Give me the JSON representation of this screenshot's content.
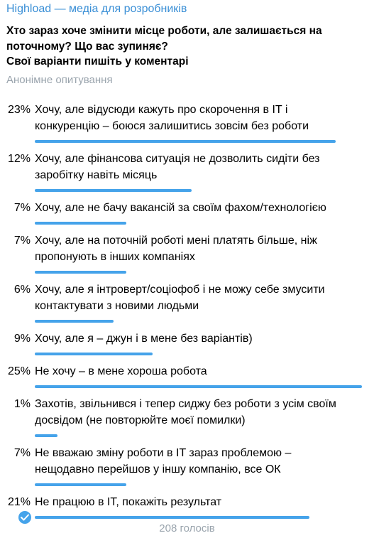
{
  "channel": {
    "name": "Highload — медіа для розробників"
  },
  "poll": {
    "question_lines": [
      "Хто зараз хоче змінити місце роботи, але залишається на",
      "поточному? Що вас зупиняє?",
      "Свої варіанти пишіть у коментарі"
    ],
    "type_label": "Анонімне опитування",
    "options": [
      {
        "percent_label": "23%",
        "percent": 23,
        "lines": [
          "Хочу, але відусюди кажуть про скорочення в IT і",
          "конкуренцію – боюся залишитись зовсім без роботи"
        ]
      },
      {
        "percent_label": "12%",
        "percent": 12,
        "lines": [
          "Хочу, але фінансова ситуація не дозволить сидіти без",
          "заробітку навіть місяць"
        ]
      },
      {
        "percent_label": "7%",
        "percent": 7,
        "lines": [
          "Хочу, але не бачу вакансій за своїм фахом/технологією"
        ]
      },
      {
        "percent_label": "7%",
        "percent": 7,
        "lines": [
          "Хочу, але на поточній роботі мені платять більше, ніж",
          "пропонують в інших компаніях"
        ]
      },
      {
        "percent_label": "6%",
        "percent": 6,
        "lines": [
          "Хочу, але я інтроверт/соціофоб і не можу себе змусити",
          "контактувати з новими людьми"
        ]
      },
      {
        "percent_label": "9%",
        "percent": 9,
        "lines": [
          "Хочу, але я – джун і в мене без варіантів)"
        ]
      },
      {
        "percent_label": "25%",
        "percent": 25,
        "lines": [
          "Не хочу – в мене хороша робота"
        ]
      },
      {
        "percent_label": "1%",
        "percent": 1,
        "lines": [
          "Захотів, звільнився і тепер сиджу без роботи з усім своїм",
          "досвідом (не повторюйте моєї помилки)"
        ]
      },
      {
        "percent_label": "7%",
        "percent": 7,
        "lines": [
          "Не вважаю зміну роботи в IT зараз проблемою –",
          "нещодавно перейшов у іншу компанію, все ОК"
        ]
      },
      {
        "percent_label": "21%",
        "percent": 21,
        "lines": [
          "Не працюю в IT, покажіть результат"
        ],
        "selected": true
      }
    ],
    "total_votes_label": "208 голосів"
  },
  "colors": {
    "accent": "#45a3ea",
    "channel": "#3a8fd6",
    "muted": "#9aa4ad"
  },
  "icons": {
    "selected": "check-icon"
  }
}
